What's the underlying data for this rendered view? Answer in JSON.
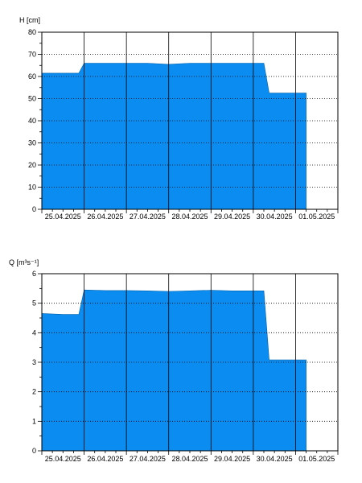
{
  "chart_data": [
    {
      "type": "area",
      "ylabel": "H [cm]",
      "ylim": [
        0,
        80
      ],
      "yticks": [
        0,
        10,
        20,
        30,
        40,
        50,
        60,
        70,
        80
      ],
      "xlabels": [
        "25.04.2025",
        "26.04.2025",
        "27.04.2025",
        "28.04.2025",
        "29.04.2025",
        "30.04.2025",
        "01.05.2025"
      ],
      "grid": true,
      "fill_color": "#0a8cf0",
      "series": [
        {
          "x": [
            "25.04.2025 00:00",
            "25.04.2025 12:00",
            "25.04.2025 21:00",
            "26.04.2025 00:00",
            "26.04.2025 12:00",
            "27.04.2025 00:00",
            "27.04.2025 12:00",
            "28.04.2025 00:00",
            "28.04.2025 12:00",
            "29.04.2025 00:00",
            "29.04.2025 12:00",
            "30.04.2025 00:00",
            "30.04.2025 06:00",
            "30.04.2025 09:00",
            "30.04.2025 12:00",
            "01.05.2025 00:00",
            "01.05.2025 06:00"
          ],
          "y": [
            61.5,
            61.5,
            61.5,
            66,
            66,
            66,
            66,
            65.5,
            66,
            66,
            66,
            66,
            66,
            52.5,
            52.5,
            52.5,
            52.5
          ]
        }
      ]
    },
    {
      "type": "area",
      "ylabel": "Q [m³s⁻¹]",
      "ylim": [
        0,
        6
      ],
      "yticks": [
        0,
        1,
        2,
        3,
        4,
        5,
        6
      ],
      "xlabels": [
        "25.04.2025",
        "26.04.2025",
        "27.04.2025",
        "28.04.2025",
        "29.04.2025",
        "30.04.2025",
        "01.05.2025"
      ],
      "grid": true,
      "fill_color": "#0a8cf0",
      "series": [
        {
          "x": [
            "25.04.2025 00:00",
            "25.04.2025 12:00",
            "25.04.2025 21:00",
            "26.04.2025 00:00",
            "26.04.2025 12:00",
            "27.04.2025 00:00",
            "27.04.2025 12:00",
            "28.04.2025 00:00",
            "28.04.2025 12:00",
            "29.04.2025 00:00",
            "29.04.2025 12:00",
            "30.04.2025 00:00",
            "30.04.2025 06:00",
            "30.04.2025 09:00",
            "30.04.2025 12:00",
            "01.05.2025 00:00",
            "01.05.2025 06:00"
          ],
          "y": [
            4.65,
            4.62,
            4.62,
            5.45,
            5.43,
            5.43,
            5.42,
            5.4,
            5.42,
            5.44,
            5.42,
            5.42,
            5.42,
            3.08,
            3.08,
            3.08,
            3.08
          ]
        }
      ]
    }
  ]
}
